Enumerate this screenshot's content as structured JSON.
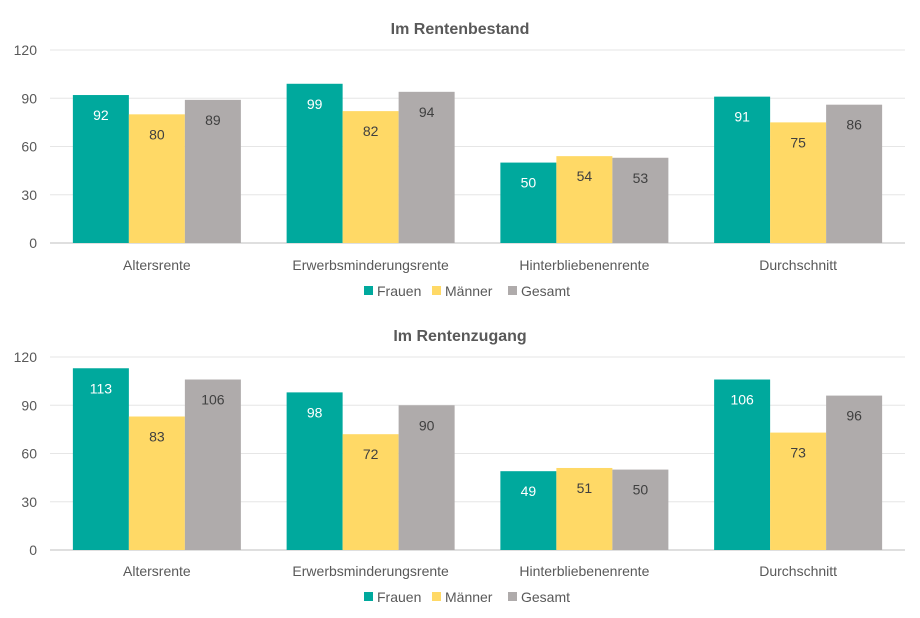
{
  "chart_data": [
    {
      "type": "bar",
      "title": "Im Rentenbestand",
      "categories": [
        "Altersrente",
        "Erwerbsminderungsrente",
        "Hinterbliebenenrente",
        "Durchschnitt"
      ],
      "series": [
        {
          "name": "Frauen",
          "values": [
            92,
            99,
            50,
            91
          ],
          "color": "#00A99D"
        },
        {
          "name": "Männer",
          "values": [
            80,
            82,
            54,
            75
          ],
          "color": "#FFD966"
        },
        {
          "name": "Gesamt",
          "values": [
            89,
            94,
            53,
            86
          ],
          "color": "#AFABAB"
        }
      ],
      "yticks": [
        0,
        30,
        60,
        90,
        120
      ],
      "ylim": [
        0,
        120
      ],
      "grid": true,
      "legend": "bottom"
    },
    {
      "type": "bar",
      "title": "Im Rentenzugang",
      "categories": [
        "Altersrente",
        "Erwerbsminderungsrente",
        "Hinterbliebenenrente",
        "Durchschnitt"
      ],
      "series": [
        {
          "name": "Frauen",
          "values": [
            113,
            98,
            49,
            106
          ],
          "color": "#00A99D"
        },
        {
          "name": "Männer",
          "values": [
            83,
            72,
            51,
            73
          ],
          "color": "#FFD966"
        },
        {
          "name": "Gesamt",
          "values": [
            106,
            90,
            50,
            96
          ],
          "color": "#AFABAB"
        }
      ],
      "yticks": [
        0,
        30,
        60,
        90,
        120
      ],
      "ylim": [
        0,
        120
      ],
      "grid": true,
      "legend": "bottom"
    }
  ]
}
